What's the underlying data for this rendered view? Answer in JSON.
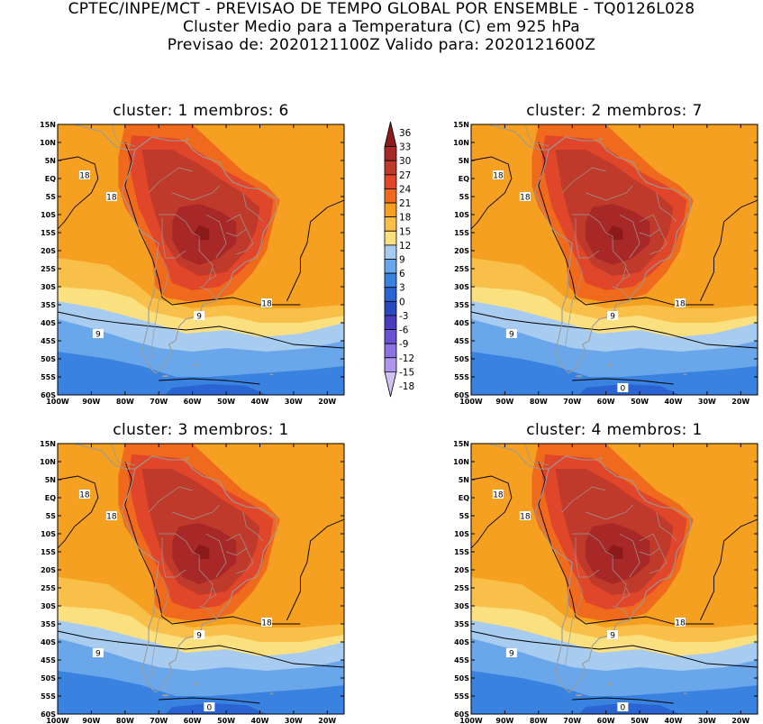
{
  "header": {
    "line1": "CPTEC/INPE/MCT - PREVISAO DE TEMPO GLOBAL POR ENSEMBLE - TQ0126L028",
    "line2": "Cluster Medio para a Temperatura (C) em 925 hPa",
    "line3": "Previsao de: 2020121100Z   Valido para: 2020121600Z"
  },
  "panels": [
    {
      "title": "cluster: 1  membros: 6",
      "contour_labels": [
        "18",
        "18",
        "18",
        "9",
        "9"
      ]
    },
    {
      "title": "cluster: 2  membros: 7",
      "contour_labels": [
        "18",
        "18",
        "18",
        "9",
        "9",
        "0"
      ]
    },
    {
      "title": "cluster: 3  membros: 1",
      "contour_labels": [
        "18",
        "18",
        "18",
        "9",
        "9",
        "0"
      ]
    },
    {
      "title": "cluster: 4  membros: 1",
      "contour_labels": [
        "18",
        "18",
        "18",
        "9",
        "9",
        "0"
      ]
    }
  ],
  "axes": {
    "lat_labels": [
      "15N",
      "10N",
      "5N",
      "EQ",
      "5S",
      "10S",
      "15S",
      "20S",
      "25S",
      "30S",
      "35S",
      "40S",
      "45S",
      "50S",
      "55S",
      "60S"
    ],
    "lon_labels": [
      "100W",
      "90W",
      "80W",
      "70W",
      "60W",
      "50W",
      "40W",
      "30W",
      "20W"
    ]
  },
  "colorbar": {
    "labels": [
      "36",
      "33",
      "30",
      "27",
      "24",
      "21",
      "18",
      "15",
      "12",
      "9",
      "6",
      "3",
      "0",
      "-3",
      "-6",
      "-9",
      "-12",
      "-15",
      "-18"
    ],
    "colors": [
      "#8c1a1a",
      "#a82828",
      "#bf3a2a",
      "#e0462a",
      "#f06a1e",
      "#f5a020",
      "#f8c048",
      "#fbe080",
      "#a8cbf0",
      "#6aa6ea",
      "#3a82e0",
      "#2a64d2",
      "#2a48c2",
      "#4a3cc0",
      "#6a52d2",
      "#8c72e0",
      "#b096ea",
      "#d2c2f4"
    ]
  },
  "colors": {
    "land_outline": "#9a9a9a",
    "contour": "#000000"
  }
}
